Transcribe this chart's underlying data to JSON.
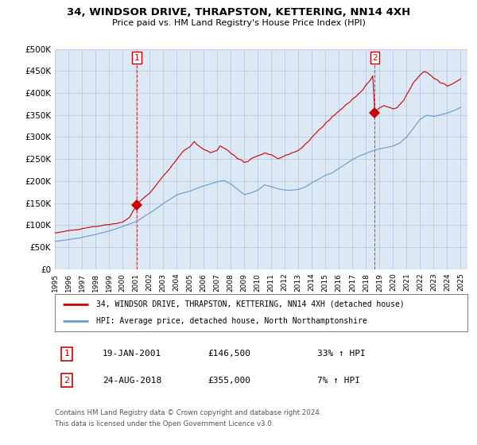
{
  "title": "34, WINDSOR DRIVE, THRAPSTON, KETTERING, NN14 4XH",
  "subtitle": "Price paid vs. HM Land Registry's House Price Index (HPI)",
  "ylabel_ticks": [
    "£0",
    "£50K",
    "£100K",
    "£150K",
    "£200K",
    "£250K",
    "£300K",
    "£350K",
    "£400K",
    "£450K",
    "£500K"
  ],
  "ytick_values": [
    0,
    50000,
    100000,
    150000,
    200000,
    250000,
    300000,
    350000,
    400000,
    450000,
    500000
  ],
  "ylim": [
    0,
    500000
  ],
  "xlim_start": 1995.0,
  "xlim_end": 2025.5,
  "sale1_x": 2001.05,
  "sale1_y": 146500,
  "sale2_x": 2018.65,
  "sale2_y": 355000,
  "sale1_label": "1",
  "sale2_label": "2",
  "hpi_color": "#6699cc",
  "house_color": "#cc0000",
  "marker_color": "#cc0000",
  "background_color": "#ffffff",
  "plot_bg_color": "#dde8f5",
  "grid_color": "#b0c4de",
  "legend_line1": "34, WINDSOR DRIVE, THRAPSTON, KETTERING, NN14 4XH (detached house)",
  "legend_line2": "HPI: Average price, detached house, North Northamptonshire",
  "table_row1": [
    "1",
    "19-JAN-2001",
    "£146,500",
    "33% ↑ HPI"
  ],
  "table_row2": [
    "2",
    "24-AUG-2018",
    "£355,000",
    "7% ↑ HPI"
  ],
  "footnote1": "Contains HM Land Registry data © Crown copyright and database right 2024.",
  "footnote2": "This data is licensed under the Open Government Licence v3.0."
}
